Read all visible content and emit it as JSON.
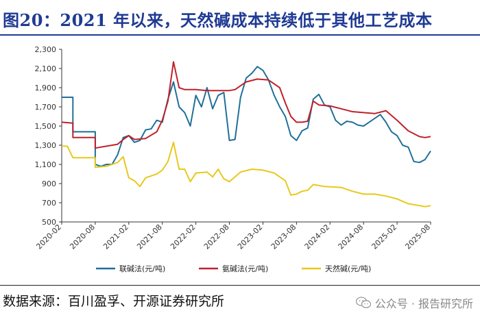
{
  "page": {
    "title": "图20：2021 年以来，天然碱成本持续低于其他工艺成本",
    "source": "数据来源：百川盈孚、开源证券研究所",
    "watermark": "公众号 · 报告研究所"
  },
  "chart_data": {
    "type": "line",
    "title": "",
    "xlabel": "",
    "ylabel": "",
    "ylim": [
      500,
      2300
    ],
    "yticks": [
      "500",
      "700",
      "900",
      "1,100",
      "1,300",
      "1,500",
      "1,700",
      "1,900",
      "2,100",
      "2,300"
    ],
    "xticks": [
      "2020-02",
      "2020-08",
      "2021-02",
      "2021-08",
      "2022-02",
      "2022-08",
      "2023-02",
      "2023-08",
      "2024-02",
      "2024-08",
      "2025-02",
      "2025-08"
    ],
    "grid": false,
    "legend": "bottom",
    "series": [
      {
        "name": "联碱法(元/吨)",
        "color": "#1f6f99",
        "points": [
          [
            "2020-02",
            1800
          ],
          [
            "2020-04",
            1800
          ],
          [
            "2020-04",
            1440
          ],
          [
            "2020-06",
            1440
          ],
          [
            "2020-08",
            1440
          ],
          [
            "2020-08",
            1100
          ],
          [
            "2020-09",
            1080
          ],
          [
            "2020-10",
            1100
          ],
          [
            "2020-11",
            1100
          ],
          [
            "2020-12",
            1200
          ],
          [
            "2021-01",
            1380
          ],
          [
            "2021-02",
            1400
          ],
          [
            "2021-03",
            1330
          ],
          [
            "2021-04",
            1350
          ],
          [
            "2021-05",
            1460
          ],
          [
            "2021-06",
            1470
          ],
          [
            "2021-07",
            1560
          ],
          [
            "2021-08",
            1540
          ],
          [
            "2021-09",
            1780
          ],
          [
            "2021-10",
            1960
          ],
          [
            "2021-11",
            1700
          ],
          [
            "2021-12",
            1640
          ],
          [
            "2022-01",
            1500
          ],
          [
            "2022-02",
            1820
          ],
          [
            "2022-03",
            1700
          ],
          [
            "2022-04",
            1900
          ],
          [
            "2022-05",
            1680
          ],
          [
            "2022-06",
            1820
          ],
          [
            "2022-07",
            1850
          ],
          [
            "2022-08",
            1350
          ],
          [
            "2022-09",
            1360
          ],
          [
            "2022-10",
            1800
          ],
          [
            "2022-11",
            2000
          ],
          [
            "2022-12",
            2050
          ],
          [
            "2023-01",
            2120
          ],
          [
            "2023-02",
            2080
          ],
          [
            "2023-03",
            1980
          ],
          [
            "2023-04",
            1820
          ],
          [
            "2023-05",
            1700
          ],
          [
            "2023-06",
            1600
          ],
          [
            "2023-07",
            1400
          ],
          [
            "2023-08",
            1350
          ],
          [
            "2023-09",
            1450
          ],
          [
            "2023-10",
            1480
          ],
          [
            "2023-11",
            1780
          ],
          [
            "2023-12",
            1830
          ],
          [
            "2024-01",
            1720
          ],
          [
            "2024-02",
            1700
          ],
          [
            "2024-03",
            1560
          ],
          [
            "2024-04",
            1510
          ],
          [
            "2024-05",
            1550
          ],
          [
            "2024-06",
            1540
          ],
          [
            "2024-07",
            1510
          ],
          [
            "2024-08",
            1500
          ],
          [
            "2024-09",
            1540
          ],
          [
            "2024-10",
            1580
          ],
          [
            "2024-11",
            1620
          ],
          [
            "2024-12",
            1540
          ],
          [
            "2025-01",
            1440
          ],
          [
            "2025-02",
            1400
          ],
          [
            "2025-03",
            1300
          ],
          [
            "2025-04",
            1280
          ],
          [
            "2025-05",
            1130
          ],
          [
            "2025-06",
            1120
          ],
          [
            "2025-07",
            1150
          ],
          [
            "2025-08",
            1240
          ]
        ]
      },
      {
        "name": "氨碱法(元/吨)",
        "color": "#c0202a",
        "points": [
          [
            "2020-02",
            1540
          ],
          [
            "2020-04",
            1530
          ],
          [
            "2020-04",
            1380
          ],
          [
            "2020-06",
            1380
          ],
          [
            "2020-08",
            1380
          ],
          [
            "2020-08",
            1270
          ],
          [
            "2020-10",
            1290
          ],
          [
            "2020-12",
            1310
          ],
          [
            "2021-01",
            1360
          ],
          [
            "2021-02",
            1400
          ],
          [
            "2021-03",
            1360
          ],
          [
            "2021-05",
            1370
          ],
          [
            "2021-07",
            1440
          ],
          [
            "2021-08",
            1560
          ],
          [
            "2021-09",
            1760
          ],
          [
            "2021-10",
            2170
          ],
          [
            "2021-11",
            1900
          ],
          [
            "2021-12",
            1880
          ],
          [
            "2022-02",
            1880
          ],
          [
            "2022-04",
            1870
          ],
          [
            "2022-06",
            1870
          ],
          [
            "2022-08",
            1870
          ],
          [
            "2022-09",
            1880
          ],
          [
            "2022-10",
            1920
          ],
          [
            "2022-11",
            1960
          ],
          [
            "2023-01",
            1990
          ],
          [
            "2023-03",
            1980
          ],
          [
            "2023-05",
            1900
          ],
          [
            "2023-06",
            1740
          ],
          [
            "2023-07",
            1600
          ],
          [
            "2023-08",
            1540
          ],
          [
            "2023-09",
            1540
          ],
          [
            "2023-10",
            1550
          ],
          [
            "2023-11",
            1760
          ],
          [
            "2023-12",
            1720
          ],
          [
            "2024-02",
            1710
          ],
          [
            "2024-04",
            1680
          ],
          [
            "2024-06",
            1650
          ],
          [
            "2024-08",
            1640
          ],
          [
            "2024-10",
            1630
          ],
          [
            "2024-12",
            1660
          ],
          [
            "2025-02",
            1560
          ],
          [
            "2025-04",
            1450
          ],
          [
            "2025-06",
            1390
          ],
          [
            "2025-07",
            1380
          ],
          [
            "2025-08",
            1390
          ]
        ]
      },
      {
        "name": "天然碱(元/吨)",
        "color": "#e8c81c",
        "points": [
          [
            "2020-02",
            1290
          ],
          [
            "2020-03",
            1290
          ],
          [
            "2020-04",
            1170
          ],
          [
            "2020-06",
            1170
          ],
          [
            "2020-08",
            1170
          ],
          [
            "2020-08",
            1070
          ],
          [
            "2020-10",
            1080
          ],
          [
            "2020-12",
            1120
          ],
          [
            "2021-01",
            1180
          ],
          [
            "2021-02",
            960
          ],
          [
            "2021-03",
            930
          ],
          [
            "2021-04",
            870
          ],
          [
            "2021-05",
            960
          ],
          [
            "2021-07",
            1000
          ],
          [
            "2021-08",
            1040
          ],
          [
            "2021-09",
            1130
          ],
          [
            "2021-10",
            1330
          ],
          [
            "2021-11",
            1050
          ],
          [
            "2021-12",
            1050
          ],
          [
            "2022-01",
            920
          ],
          [
            "2022-02",
            1010
          ],
          [
            "2022-04",
            1020
          ],
          [
            "2022-05",
            970
          ],
          [
            "2022-06",
            1050
          ],
          [
            "2022-07",
            950
          ],
          [
            "2022-08",
            920
          ],
          [
            "2022-10",
            1020
          ],
          [
            "2022-12",
            1050
          ],
          [
            "2023-02",
            1040
          ],
          [
            "2023-04",
            1010
          ],
          [
            "2023-06",
            930
          ],
          [
            "2023-07",
            780
          ],
          [
            "2023-08",
            790
          ],
          [
            "2023-09",
            820
          ],
          [
            "2023-10",
            830
          ],
          [
            "2023-11",
            890
          ],
          [
            "2024-01",
            870
          ],
          [
            "2024-04",
            860
          ],
          [
            "2024-06",
            820
          ],
          [
            "2024-08",
            790
          ],
          [
            "2024-10",
            790
          ],
          [
            "2024-12",
            770
          ],
          [
            "2025-02",
            740
          ],
          [
            "2025-04",
            690
          ],
          [
            "2025-06",
            670
          ],
          [
            "2025-07",
            660
          ],
          [
            "2025-08",
            670
          ]
        ]
      }
    ]
  }
}
